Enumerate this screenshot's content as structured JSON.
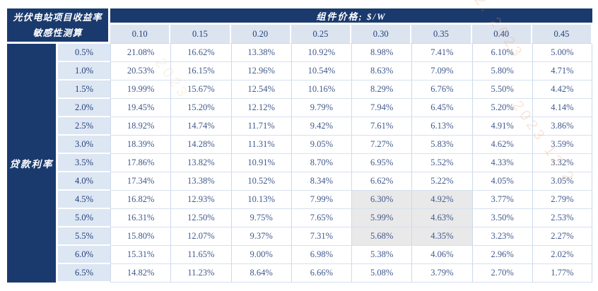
{
  "colors": {
    "navy_header": "#1a3a6e",
    "column_header_bg": "#dce4f0",
    "row_header_bg": "#dde6f3",
    "cell_bg": "#ffffff",
    "highlight_bg": "#e9e9e9",
    "grid_line": "#ccd9ec",
    "data_text": "#41598c",
    "header_text": "#24427c",
    "watermark": "#eda06e"
  },
  "header": {
    "corner_line1": "光伏电站项目收益率",
    "corner_line2": "敏感性测算",
    "top_band": "组件价格; $/W",
    "row_axis_label": "贷款利率"
  },
  "watermark": {
    "fragment1": "82. 2023",
    "fragment2": "2023 12 2",
    "fragment3": "2023"
  },
  "chart_data": {
    "type": "table",
    "title": "光伏电站项目收益率敏感性测算",
    "column_axis_label": "组件价格; $/W",
    "row_axis_label": "贷款利率",
    "columns": [
      "0.10",
      "0.15",
      "0.20",
      "0.25",
      "0.30",
      "0.35",
      "0.40",
      "0.45"
    ],
    "rows": [
      "0.5%",
      "1.0%",
      "1.5%",
      "2.0%",
      "2.5%",
      "3.0%",
      "3.5%",
      "4.0%",
      "4.5%",
      "5.0%",
      "5.5%",
      "6.0%",
      "6.5%"
    ],
    "values": [
      [
        "21.08%",
        "16.62%",
        "13.38%",
        "10.92%",
        "8.98%",
        "7.41%",
        "6.10%",
        "5.00%"
      ],
      [
        "20.53%",
        "16.15%",
        "12.96%",
        "10.54%",
        "8.63%",
        "7.09%",
        "5.80%",
        "4.71%"
      ],
      [
        "19.99%",
        "15.67%",
        "12.54%",
        "10.16%",
        "8.29%",
        "6.76%",
        "5.50%",
        "4.42%"
      ],
      [
        "19.45%",
        "15.20%",
        "12.12%",
        "9.79%",
        "7.94%",
        "6.45%",
        "5.20%",
        "4.14%"
      ],
      [
        "18.92%",
        "14.74%",
        "11.71%",
        "9.42%",
        "7.61%",
        "6.13%",
        "4.91%",
        "3.86%"
      ],
      [
        "18.39%",
        "14.28%",
        "11.31%",
        "9.05%",
        "7.27%",
        "5.83%",
        "4.62%",
        "3.59%"
      ],
      [
        "17.86%",
        "13.82%",
        "10.91%",
        "8.70%",
        "6.95%",
        "5.52%",
        "4.33%",
        "3.32%"
      ],
      [
        "17.34%",
        "13.38%",
        "10.52%",
        "8.34%",
        "6.62%",
        "5.22%",
        "4.05%",
        "3.05%"
      ],
      [
        "16.82%",
        "12.93%",
        "10.13%",
        "7.99%",
        "6.30%",
        "4.92%",
        "3.77%",
        "2.79%"
      ],
      [
        "16.31%",
        "12.50%",
        "9.75%",
        "7.65%",
        "5.99%",
        "4.63%",
        "3.50%",
        "2.53%"
      ],
      [
        "15.80%",
        "12.07%",
        "9.37%",
        "7.31%",
        "5.68%",
        "4.35%",
        "3.23%",
        "2.27%"
      ],
      [
        "15.31%",
        "11.65%",
        "9.00%",
        "6.98%",
        "5.38%",
        "4.06%",
        "2.96%",
        "2.02%"
      ],
      [
        "14.82%",
        "11.23%",
        "8.64%",
        "6.66%",
        "5.08%",
        "3.79%",
        "2.70%",
        "1.77%"
      ]
    ],
    "highlighted_cells": [
      [
        8,
        4
      ],
      [
        8,
        5
      ],
      [
        9,
        4
      ],
      [
        9,
        5
      ],
      [
        10,
        4
      ],
      [
        10,
        5
      ]
    ],
    "legend_position": "none",
    "grid": true
  }
}
